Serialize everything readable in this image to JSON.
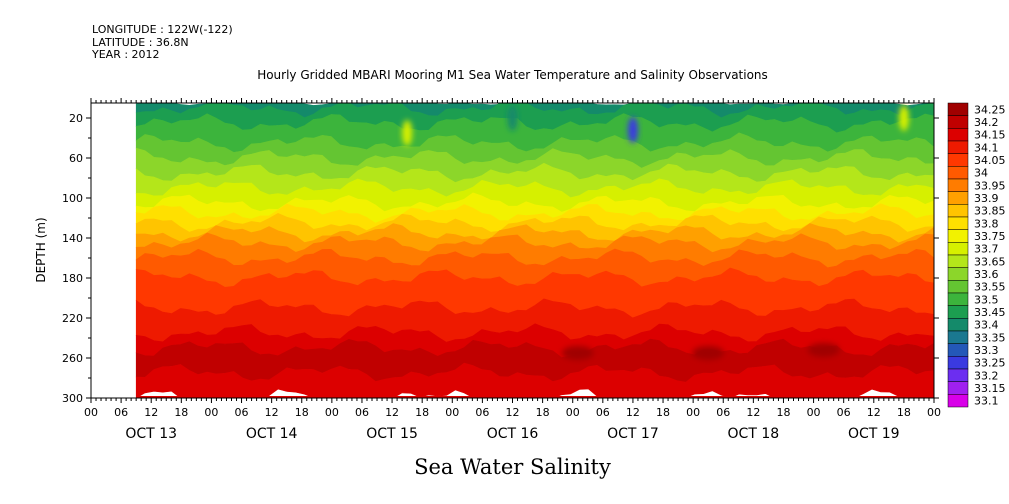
{
  "header": {
    "longitude": "LONGITUDE : 122W(-122)",
    "latitude": "LATITUDE : 36.8N",
    "year": "YEAR : 2012"
  },
  "chart_data": {
    "type": "heatmap",
    "title": "Hourly Gridded MBARI Mooring M1 Sea Water Temperature and Salinity Observations",
    "variable_label": "Sea Water Salinity",
    "ylabel": "DEPTH (m)",
    "ylim": [
      300,
      5
    ],
    "y_inverted": true,
    "y_ticks": [
      20,
      60,
      100,
      140,
      180,
      220,
      260,
      300
    ],
    "x_hour_ticks": [
      "00",
      "06",
      "12",
      "18",
      "00",
      "06",
      "12",
      "18",
      "00",
      "06",
      "12",
      "18",
      "00",
      "06",
      "12",
      "18",
      "00",
      "06",
      "12",
      "18",
      "00",
      "06",
      "12",
      "18",
      "00",
      "06",
      "12",
      "18",
      "00"
    ],
    "x_day_labels": [
      "OCT 13",
      "OCT 14",
      "OCT 15",
      "OCT 16",
      "OCT 17",
      "OCT 18",
      "OCT 19"
    ],
    "x_range_hours": [
      0,
      168
    ],
    "data_start_hour": 9,
    "colorbar": {
      "levels": [
        "34.25",
        "34.2",
        "34.15",
        "34.1",
        "34.05",
        "34",
        "33.95",
        "33.9",
        "33.85",
        "33.8",
        "33.75",
        "33.7",
        "33.65",
        "33.6",
        "33.55",
        "33.5",
        "33.45",
        "33.4",
        "33.35",
        "33.3",
        "33.25",
        "33.2",
        "33.15",
        "33.1"
      ],
      "colors": [
        "#a00000",
        "#c00000",
        "#dc0000",
        "#ee1a00",
        "#ff3800",
        "#ff5a00",
        "#ff7c00",
        "#ffa000",
        "#ffc400",
        "#ffe000",
        "#f2f200",
        "#d6f000",
        "#b4e61a",
        "#8cd62a",
        "#64c532",
        "#3cb43c",
        "#1c9e50",
        "#148a6a",
        "#1a7890",
        "#2458b8",
        "#3a3ae0",
        "#6c2ef0",
        "#a020f0",
        "#d800e8"
      ]
    },
    "depth_profile": [
      {
        "depth": 5,
        "value": 33.4
      },
      {
        "depth": 10,
        "value": 33.45
      },
      {
        "depth": 25,
        "value": 33.5
      },
      {
        "depth": 45,
        "value": 33.55
      },
      {
        "depth": 60,
        "value": 33.6
      },
      {
        "depth": 75,
        "value": 33.65
      },
      {
        "depth": 90,
        "value": 33.7
      },
      {
        "depth": 105,
        "value": 33.75
      },
      {
        "depth": 115,
        "value": 33.8
      },
      {
        "depth": 125,
        "value": 33.85
      },
      {
        "depth": 135,
        "value": 33.9
      },
      {
        "depth": 145,
        "value": 33.95
      },
      {
        "depth": 160,
        "value": 34.0
      },
      {
        "depth": 180,
        "value": 34.05
      },
      {
        "depth": 210,
        "value": 34.1
      },
      {
        "depth": 235,
        "value": 34.15
      },
      {
        "depth": 250,
        "value": 34.2
      },
      {
        "depth": 275,
        "value": 34.15
      },
      {
        "depth": 300,
        "value": 34.15
      }
    ],
    "anomalies": [
      {
        "hour": 63,
        "depth": 35,
        "value": 33.7
      },
      {
        "hour": 108,
        "depth": 32,
        "value": 33.25
      },
      {
        "hour": 84,
        "depth": 20,
        "value": 33.4
      },
      {
        "hour": 162,
        "depth": 20,
        "value": 33.7
      },
      {
        "hour": 123,
        "depth": 255,
        "value": 34.25
      },
      {
        "hour": 97,
        "depth": 255,
        "value": 34.25
      },
      {
        "hour": 146,
        "depth": 252,
        "value": 34.25
      }
    ]
  }
}
